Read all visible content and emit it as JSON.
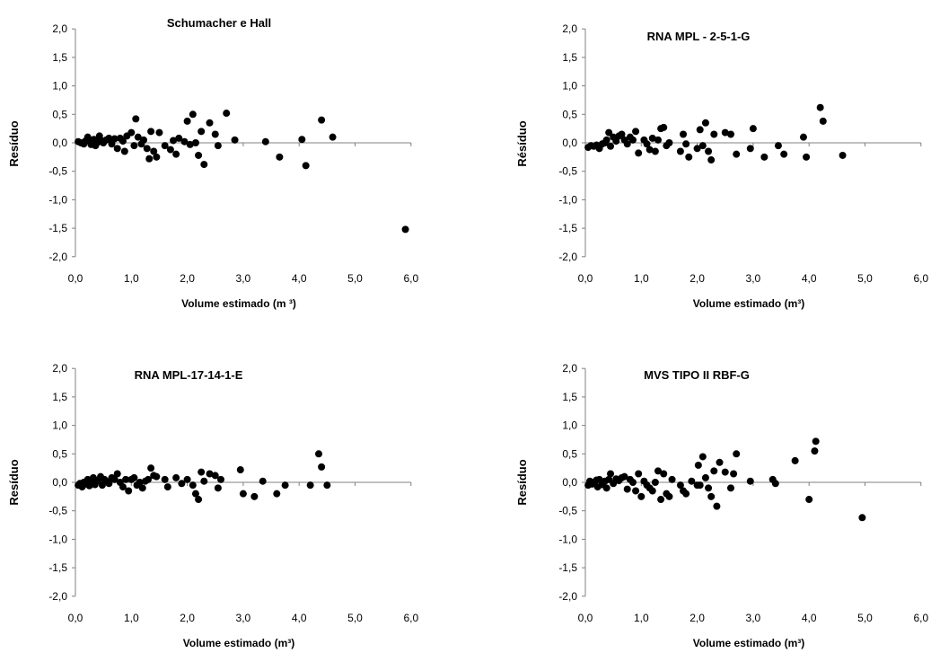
{
  "chart_data": [
    {
      "type": "scatter",
      "title": "Schumacher e Hall",
      "xlabel": "Volume estimado (m ³)",
      "ylabel": "Resíduo",
      "xlim": [
        0,
        6
      ],
      "ylim": [
        -2,
        2
      ],
      "xticks": [
        "0,0",
        "1,0",
        "2,0",
        "3,0",
        "4,0",
        "5,0",
        "6,0"
      ],
      "yticks": [
        "2,0",
        "1,5",
        "1,0",
        "0,5",
        "0,0",
        "-0,5",
        "-1,0",
        "-1,5",
        "-2,0"
      ],
      "color": "#000000",
      "points": [
        [
          0.05,
          0.02
        ],
        [
          0.1,
          0.0
        ],
        [
          0.15,
          -0.02
        ],
        [
          0.18,
          0.03
        ],
        [
          0.22,
          0.1
        ],
        [
          0.25,
          0.05
        ],
        [
          0.28,
          -0.03
        ],
        [
          0.3,
          0.02
        ],
        [
          0.33,
          0.06
        ],
        [
          0.36,
          -0.05
        ],
        [
          0.4,
          0.01
        ],
        [
          0.43,
          0.12
        ],
        [
          0.46,
          0.04
        ],
        [
          0.5,
          0.0
        ],
        [
          0.55,
          0.05
        ],
        [
          0.6,
          0.08
        ],
        [
          0.65,
          -0.02
        ],
        [
          0.7,
          0.07
        ],
        [
          0.75,
          -0.1
        ],
        [
          0.8,
          0.08
        ],
        [
          0.85,
          0.03
        ],
        [
          0.88,
          -0.15
        ],
        [
          0.92,
          0.12
        ],
        [
          1.0,
          0.18
        ],
        [
          1.05,
          -0.05
        ],
        [
          1.08,
          0.42
        ],
        [
          1.12,
          0.1
        ],
        [
          1.18,
          -0.02
        ],
        [
          1.22,
          0.05
        ],
        [
          1.28,
          -0.1
        ],
        [
          1.32,
          -0.28
        ],
        [
          1.35,
          0.2
        ],
        [
          1.4,
          -0.15
        ],
        [
          1.45,
          -0.25
        ],
        [
          1.5,
          0.18
        ],
        [
          1.6,
          -0.05
        ],
        [
          1.7,
          -0.12
        ],
        [
          1.75,
          0.04
        ],
        [
          1.8,
          -0.2
        ],
        [
          1.85,
          0.08
        ],
        [
          1.95,
          0.02
        ],
        [
          2.0,
          0.38
        ],
        [
          2.05,
          -0.03
        ],
        [
          2.1,
          0.5
        ],
        [
          2.15,
          0.0
        ],
        [
          2.2,
          -0.22
        ],
        [
          2.25,
          0.2
        ],
        [
          2.3,
          -0.38
        ],
        [
          2.4,
          0.35
        ],
        [
          2.5,
          0.15
        ],
        [
          2.55,
          -0.05
        ],
        [
          2.7,
          0.52
        ],
        [
          2.85,
          0.05
        ],
        [
          3.4,
          0.02
        ],
        [
          3.65,
          -0.25
        ],
        [
          4.05,
          0.06
        ],
        [
          4.12,
          -0.4
        ],
        [
          4.4,
          0.4
        ],
        [
          4.6,
          0.1
        ],
        [
          5.9,
          -1.52
        ]
      ]
    },
    {
      "type": "scatter",
      "title": "RNA MPL - 2-5-1-G",
      "xlabel": "Volume estimado (m³)",
      "ylabel": "Résíduo",
      "xlim": [
        0,
        6
      ],
      "ylim": [
        -2,
        2
      ],
      "xticks": [
        "0,0",
        "1,0",
        "2,0",
        "3,0",
        "4,0",
        "5,0",
        "6,0"
      ],
      "yticks": [
        "2,0",
        "1,5",
        "1,0",
        "0,5",
        "0,0",
        "-0,5",
        "-1,0",
        "-1,5",
        "-2,0"
      ],
      "color": "#000000",
      "points": [
        [
          0.05,
          -0.08
        ],
        [
          0.1,
          -0.05
        ],
        [
          0.15,
          -0.06
        ],
        [
          0.2,
          -0.04
        ],
        [
          0.25,
          -0.1
        ],
        [
          0.3,
          -0.02
        ],
        [
          0.35,
          0.0
        ],
        [
          0.38,
          0.05
        ],
        [
          0.42,
          0.18
        ],
        [
          0.45,
          -0.06
        ],
        [
          0.5,
          0.1
        ],
        [
          0.55,
          0.03
        ],
        [
          0.6,
          0.12
        ],
        [
          0.65,
          0.15
        ],
        [
          0.7,
          0.05
        ],
        [
          0.75,
          -0.02
        ],
        [
          0.8,
          0.1
        ],
        [
          0.85,
          0.05
        ],
        [
          0.9,
          0.2
        ],
        [
          0.95,
          -0.18
        ],
        [
          1.05,
          0.05
        ],
        [
          1.1,
          -0.02
        ],
        [
          1.15,
          -0.12
        ],
        [
          1.2,
          0.08
        ],
        [
          1.25,
          -0.15
        ],
        [
          1.3,
          0.05
        ],
        [
          1.35,
          0.25
        ],
        [
          1.4,
          0.27
        ],
        [
          1.45,
          -0.05
        ],
        [
          1.5,
          0.0
        ],
        [
          1.7,
          -0.15
        ],
        [
          1.75,
          0.15
        ],
        [
          1.8,
          -0.02
        ],
        [
          1.85,
          -0.25
        ],
        [
          2.0,
          -0.1
        ],
        [
          2.05,
          0.23
        ],
        [
          2.1,
          -0.05
        ],
        [
          2.15,
          0.35
        ],
        [
          2.2,
          -0.15
        ],
        [
          2.25,
          -0.3
        ],
        [
          2.3,
          0.15
        ],
        [
          2.5,
          0.18
        ],
        [
          2.6,
          0.15
        ],
        [
          2.7,
          -0.2
        ],
        [
          2.95,
          -0.1
        ],
        [
          3.0,
          0.25
        ],
        [
          3.2,
          -0.25
        ],
        [
          3.45,
          -0.05
        ],
        [
          3.55,
          -0.2
        ],
        [
          3.9,
          0.1
        ],
        [
          3.95,
          -0.25
        ],
        [
          4.2,
          0.62
        ],
        [
          4.25,
          0.38
        ],
        [
          4.6,
          -0.22
        ]
      ]
    },
    {
      "type": "scatter",
      "title": "RNA MPL-17-14-1-E",
      "xlabel": "Volume estimado (m³)",
      "ylabel": "Resíduo",
      "xlim": [
        0,
        6
      ],
      "ylim": [
        -2,
        2
      ],
      "xticks": [
        "0,0",
        "1,0",
        "2,0",
        "3,0",
        "4,0",
        "5,0",
        "6,0"
      ],
      "yticks": [
        "2,0",
        "1,5",
        "1,0",
        "0,5",
        "0,0",
        "-0,5",
        "-1,0",
        "-1,5",
        "-2,0"
      ],
      "color": "#000000",
      "points": [
        [
          0.05,
          -0.05
        ],
        [
          0.08,
          -0.02
        ],
        [
          0.12,
          -0.08
        ],
        [
          0.15,
          0.0
        ],
        [
          0.18,
          -0.03
        ],
        [
          0.22,
          0.05
        ],
        [
          0.25,
          -0.06
        ],
        [
          0.28,
          0.02
        ],
        [
          0.32,
          0.08
        ],
        [
          0.35,
          -0.04
        ],
        [
          0.4,
          0.03
        ],
        [
          0.45,
          0.1
        ],
        [
          0.48,
          -0.05
        ],
        [
          0.52,
          0.05
        ],
        [
          0.55,
          0.02
        ],
        [
          0.6,
          -0.02
        ],
        [
          0.65,
          0.08
        ],
        [
          0.7,
          0.05
        ],
        [
          0.75,
          0.15
        ],
        [
          0.8,
          0.0
        ],
        [
          0.85,
          -0.08
        ],
        [
          0.9,
          0.05
        ],
        [
          0.95,
          -0.15
        ],
        [
          1.0,
          0.05
        ],
        [
          1.05,
          0.08
        ],
        [
          1.1,
          -0.05
        ],
        [
          1.15,
          0.0
        ],
        [
          1.2,
          -0.1
        ],
        [
          1.25,
          0.02
        ],
        [
          1.3,
          0.05
        ],
        [
          1.35,
          0.25
        ],
        [
          1.4,
          0.12
        ],
        [
          1.45,
          0.1
        ],
        [
          1.6,
          0.05
        ],
        [
          1.65,
          -0.08
        ],
        [
          1.8,
          0.08
        ],
        [
          1.9,
          -0.02
        ],
        [
          2.0,
          0.05
        ],
        [
          2.1,
          -0.05
        ],
        [
          2.15,
          -0.2
        ],
        [
          2.2,
          -0.3
        ],
        [
          2.25,
          0.18
        ],
        [
          2.3,
          0.02
        ],
        [
          2.4,
          0.15
        ],
        [
          2.5,
          0.12
        ],
        [
          2.55,
          -0.1
        ],
        [
          2.6,
          0.05
        ],
        [
          2.95,
          0.22
        ],
        [
          3.0,
          -0.2
        ],
        [
          3.2,
          -0.25
        ],
        [
          3.35,
          0.02
        ],
        [
          3.6,
          -0.2
        ],
        [
          3.75,
          -0.05
        ],
        [
          4.2,
          -0.05
        ],
        [
          4.35,
          0.5
        ],
        [
          4.4,
          0.27
        ],
        [
          4.5,
          -0.05
        ]
      ]
    },
    {
      "type": "scatter",
      "title": "MVS TIPO II RBF-G",
      "xlabel": "Volume estimado (m³)",
      "ylabel": "Resíduo",
      "xlim": [
        0,
        6
      ],
      "ylim": [
        -2,
        2
      ],
      "xticks": [
        "0,0",
        "1,0",
        "2,0",
        "3,0",
        "4,0",
        "5,0",
        "6,0"
      ],
      "yticks": [
        "2,0",
        "1,5",
        "1,0",
        "0,5",
        "0,0",
        "-0,5",
        "-1,0",
        "-1,5",
        "-2,0"
      ],
      "color": "#000000",
      "points": [
        [
          0.05,
          -0.05
        ],
        [
          0.08,
          0.02
        ],
        [
          0.12,
          -0.03
        ],
        [
          0.15,
          0.0
        ],
        [
          0.2,
          0.04
        ],
        [
          0.22,
          -0.08
        ],
        [
          0.25,
          0.05
        ],
        [
          0.3,
          -0.04
        ],
        [
          0.35,
          0.02
        ],
        [
          0.38,
          -0.1
        ],
        [
          0.42,
          0.05
        ],
        [
          0.45,
          0.15
        ],
        [
          0.5,
          -0.02
        ],
        [
          0.55,
          0.06
        ],
        [
          0.6,
          0.03
        ],
        [
          0.65,
          0.08
        ],
        [
          0.7,
          0.1
        ],
        [
          0.75,
          -0.12
        ],
        [
          0.8,
          0.05
        ],
        [
          0.85,
          0.0
        ],
        [
          0.9,
          -0.15
        ],
        [
          0.95,
          0.15
        ],
        [
          1.0,
          -0.25
        ],
        [
          1.05,
          0.02
        ],
        [
          1.1,
          -0.05
        ],
        [
          1.15,
          -0.1
        ],
        [
          1.2,
          -0.15
        ],
        [
          1.25,
          0.0
        ],
        [
          1.3,
          0.2
        ],
        [
          1.35,
          -0.3
        ],
        [
          1.4,
          0.15
        ],
        [
          1.45,
          -0.2
        ],
        [
          1.5,
          -0.25
        ],
        [
          1.55,
          0.05
        ],
        [
          1.7,
          -0.05
        ],
        [
          1.75,
          -0.15
        ],
        [
          1.8,
          -0.2
        ],
        [
          1.9,
          0.02
        ],
        [
          2.0,
          -0.05
        ],
        [
          2.02,
          0.3
        ],
        [
          2.05,
          -0.05
        ],
        [
          2.1,
          0.45
        ],
        [
          2.15,
          0.08
        ],
        [
          2.2,
          -0.1
        ],
        [
          2.25,
          -0.25
        ],
        [
          2.3,
          0.2
        ],
        [
          2.35,
          -0.42
        ],
        [
          2.4,
          0.35
        ],
        [
          2.5,
          0.18
        ],
        [
          2.6,
          -0.1
        ],
        [
          2.65,
          0.15
        ],
        [
          2.7,
          0.5
        ],
        [
          2.95,
          0.02
        ],
        [
          3.35,
          0.05
        ],
        [
          3.4,
          -0.02
        ],
        [
          3.75,
          0.38
        ],
        [
          4.0,
          -0.3
        ],
        [
          4.1,
          0.55
        ],
        [
          4.12,
          0.72
        ],
        [
          4.95,
          -0.62
        ]
      ]
    }
  ]
}
